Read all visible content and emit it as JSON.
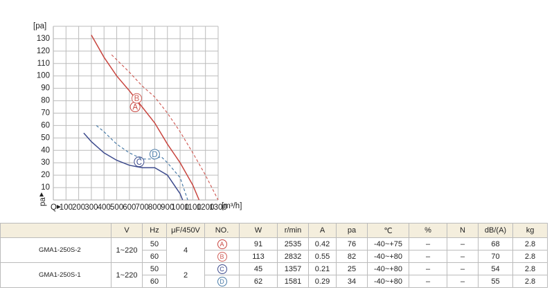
{
  "chart_data": {
    "type": "line",
    "y_unit": "[pa]",
    "x_unit": "[m³/h]",
    "x_axis_label": "Q",
    "y_axis_label": "pa",
    "xlim": [
      0,
      1300
    ],
    "xticks": [
      100,
      200,
      300,
      400,
      500,
      600,
      700,
      800,
      900,
      1000,
      1100,
      1200,
      1300
    ],
    "ylim": [
      0,
      140
    ],
    "yticks": [
      10,
      20,
      30,
      40,
      50,
      60,
      70,
      80,
      90,
      100,
      110,
      120,
      130
    ],
    "grid": true,
    "series": [
      {
        "name": "A",
        "color": "#c8453f",
        "style": "solid",
        "x": [
          300,
          400,
          500,
          600,
          700,
          800,
          900,
          1000,
          1100,
          1150
        ],
        "values": [
          133,
          115,
          100,
          88,
          75,
          62,
          45,
          30,
          12,
          0
        ]
      },
      {
        "name": "B",
        "color": "#d0605a",
        "style": "dashed",
        "x": [
          460,
          600,
          700,
          800,
          900,
          1000,
          1100,
          1200,
          1300
        ],
        "values": [
          117,
          103,
          92,
          83,
          70,
          55,
          38,
          20,
          0
        ]
      },
      {
        "name": "C",
        "color": "#3c4a8c",
        "style": "solid",
        "x": [
          240,
          300,
          400,
          500,
          600,
          700,
          800,
          900,
          1000,
          1020
        ],
        "values": [
          54,
          47,
          38,
          32,
          28,
          26,
          26,
          20,
          5,
          0
        ]
      },
      {
        "name": "D",
        "color": "#4a7ca8",
        "style": "dashed",
        "x": [
          340,
          400,
          500,
          600,
          700,
          800,
          850,
          900,
          1000,
          1060
        ],
        "values": [
          60,
          55,
          45,
          38,
          33,
          33,
          35,
          30,
          18,
          0
        ]
      }
    ]
  },
  "table": {
    "headers": [
      "V",
      "Hz",
      "μF/450V",
      "NO.",
      "W",
      "r/min",
      "A",
      "pa",
      "℃",
      "%",
      "N",
      "dB/(A)",
      "kg"
    ],
    "groups": [
      {
        "model": "GMA1-250S-2",
        "voltage": "1~220",
        "capacitor": "4",
        "rows": [
          {
            "hz": "50",
            "no": "A",
            "w": "91",
            "rpm": "2535",
            "amp": "0.42",
            "pa": "76",
            "temp": "-40~+75",
            "pct": "–",
            "n": "–",
            "db": "68",
            "kg": "2.8"
          },
          {
            "hz": "60",
            "no": "B",
            "w": "113",
            "rpm": "2832",
            "amp": "0.55",
            "pa": "82",
            "temp": "-40~+80",
            "pct": "–",
            "n": "–",
            "db": "70",
            "kg": "2.8"
          }
        ]
      },
      {
        "model": "GMA1-250S-1",
        "voltage": "1~220",
        "capacitor": "2",
        "rows": [
          {
            "hz": "50",
            "no": "C",
            "w": "45",
            "rpm": "1357",
            "amp": "0.21",
            "pa": "25",
            "temp": "-40~+80",
            "pct": "–",
            "n": "–",
            "db": "54",
            "kg": "2.8"
          },
          {
            "hz": "60",
            "no": "D",
            "w": "62",
            "rpm": "1581",
            "amp": "0.29",
            "pa": "34",
            "temp": "-40~+80",
            "pct": "–",
            "n": "–",
            "db": "55",
            "kg": "2.8"
          }
        ]
      }
    ]
  }
}
